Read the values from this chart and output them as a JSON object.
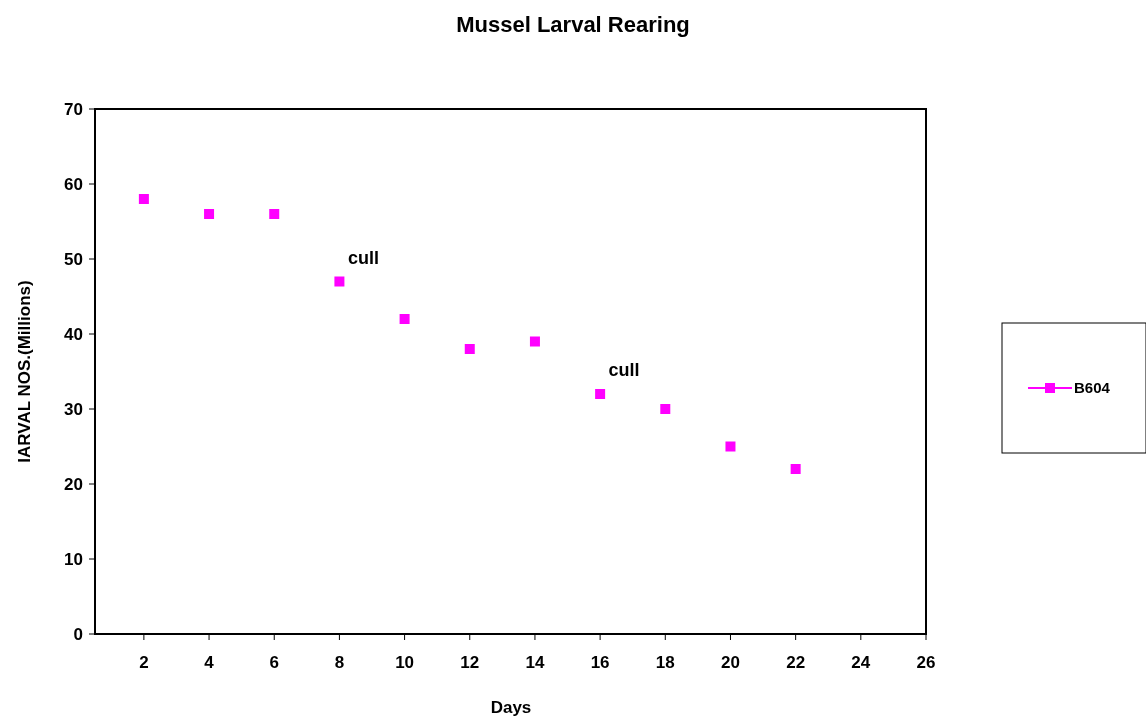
{
  "chart_data": {
    "type": "scatter",
    "title": "Mussel Larval Rearing",
    "xlabel": "Days",
    "ylabel": "IARVAL NOS.(Millions)",
    "x": [
      2,
      4,
      6,
      8,
      10,
      12,
      14,
      16,
      18,
      20,
      22
    ],
    "series": [
      {
        "name": "B604",
        "color": "#ff00ff",
        "values": [
          58,
          56,
          56,
          47,
          42,
          38,
          39,
          32,
          30,
          25,
          22
        ]
      }
    ],
    "xlim": [
      0.5,
      26
    ],
    "xticks": [
      2,
      4,
      6,
      8,
      10,
      12,
      14,
      16,
      18,
      20,
      22,
      24,
      26
    ],
    "ylim": [
      0,
      70
    ],
    "yticks": [
      0,
      10,
      20,
      30,
      40,
      50,
      60,
      70
    ],
    "marker": "square",
    "legend": "right",
    "grid": false,
    "annotations": [
      {
        "text": "cull",
        "x": 8,
        "y": 47
      },
      {
        "text": "cull",
        "x": 16,
        "y": 32
      }
    ]
  }
}
